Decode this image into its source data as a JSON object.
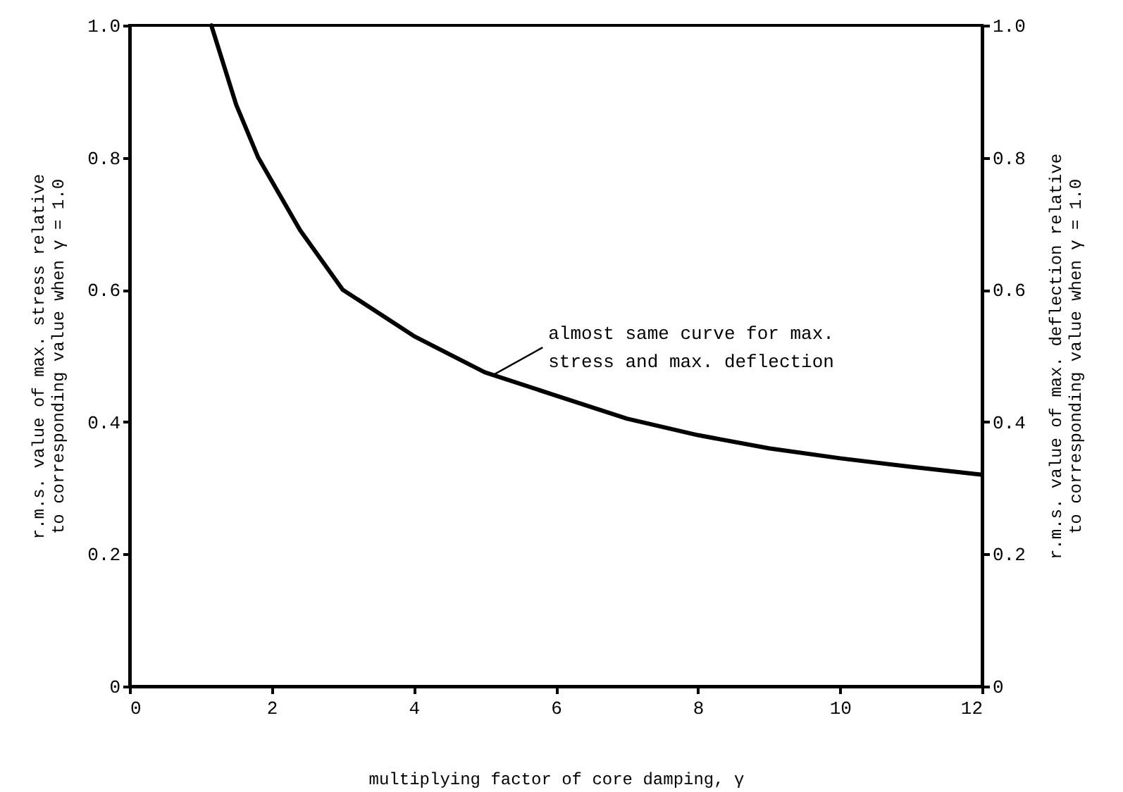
{
  "chart_data": {
    "type": "line",
    "xlabel": "multiplying factor of core damping, γ",
    "ylabel": "r.m.s. value of max. stress relative\nto corresponding value when γ = 1.0",
    "y2label": "r.m.s. value of max. deflection relative\nto corresponding value when γ = 1.0",
    "x": [
      1.15,
      1.5,
      1.81,
      2.4,
      3,
      4,
      5,
      6,
      7,
      8,
      9,
      10,
      11,
      12
    ],
    "series": [
      {
        "color": "#000000",
        "values": [
          1.0,
          0.88,
          0.8,
          0.69,
          0.6,
          0.53,
          0.475,
          0.44,
          0.405,
          0.38,
          0.36,
          0.345,
          0.332,
          0.32
        ]
      }
    ],
    "xlim": [
      0,
      12
    ],
    "xticks": [
      0,
      2,
      4,
      6,
      8,
      10,
      12
    ],
    "ylim": [
      0,
      1
    ],
    "yticks": [
      0,
      0.2,
      0.4,
      0.6,
      0.8,
      {
        "value": 1,
        "label": "1.0"
      }
    ],
    "y2lim": [
      0,
      1
    ],
    "y2ticks": [
      0,
      0.2,
      0.4,
      0.6,
      0.8,
      {
        "value": 1,
        "label": "1.0"
      }
    ],
    "annotations": [
      {
        "text": "almost same curve for max.\nstress and max. deflection",
        "x": 5.1,
        "y": 0.47
      }
    ],
    "grid": false,
    "marker": "none",
    "line_style": "solid"
  }
}
